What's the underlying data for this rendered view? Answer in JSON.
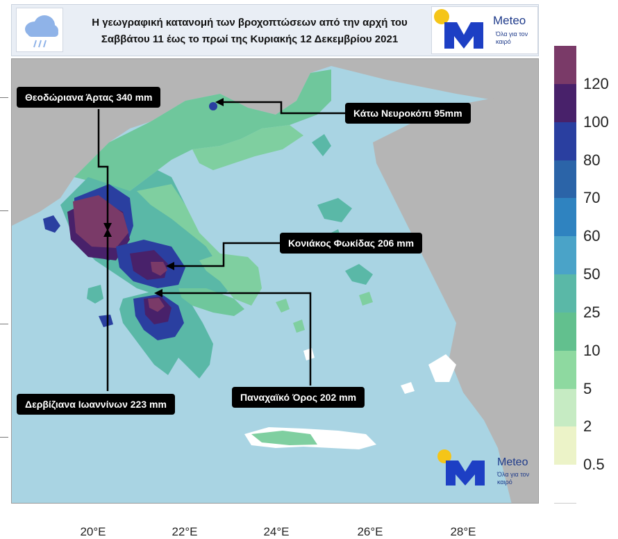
{
  "header": {
    "title_line1": "Η γεωγραφική κατανομή των βροχοπτώσεων από την αρχή του",
    "title_line2": "Σαββάτου 11 έως το πρωί της Κυριακής 12 Δεκεμβρίου 2021",
    "icon": "rain-cloud-icon"
  },
  "brand": {
    "name": "Meteo",
    "slogan": "Όλα για τον καιρό",
    "logo_color": "#1d3fc4",
    "sun_color": "#f5c518"
  },
  "annotations": [
    {
      "id": "theodoriana",
      "text": "Θεοδώριανα Άρτας 340 mm"
    },
    {
      "id": "neurokopi",
      "text": "Κάτω Νευροκόπι 95mm"
    },
    {
      "id": "koniakos",
      "text": "Κονιάκος Φωκίδας 206 mm"
    },
    {
      "id": "derviziana",
      "text": "Δερβίζιανα Ιωαννίνων 223 mm"
    },
    {
      "id": "panachaiko",
      "text": "Παναχαϊκό Όρος 202 mm"
    }
  ],
  "x_axis": {
    "ticks": [
      "20°E",
      "22°E",
      "24°E",
      "26°E",
      "28°E"
    ]
  },
  "colorbar": {
    "labels": [
      "120",
      "100",
      "80",
      "70",
      "60",
      "50",
      "25",
      "10",
      "5",
      "2",
      "0.5"
    ],
    "colors": [
      "#7a3a68",
      "#48216a",
      "#2a3fa0",
      "#2b64a8",
      "#2f83c0",
      "#4aa3c8",
      "#5ab8a7",
      "#62c08e",
      "#8ed9a0",
      "#c6ebc3",
      "#ecf3c8",
      "#ffffff"
    ]
  },
  "map_colors": {
    "sea": "#a9d4e3",
    "land_outside": "#b5b5b5",
    "light_rain": "#7fcfa0",
    "moderate": "#5ab8a7",
    "heavy": "#2a3fa0",
    "very_heavy": "#48216a",
    "extreme": "#7a3a68"
  }
}
